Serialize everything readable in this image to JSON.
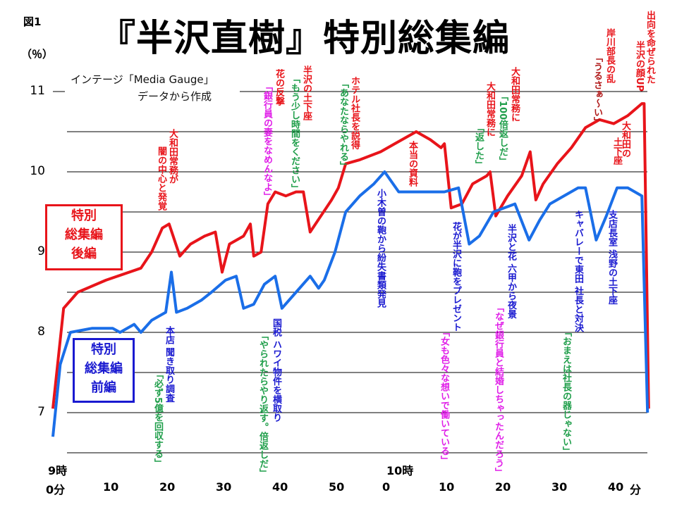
{
  "figure_label": "図1",
  "title": "『半沢直樹』特別総集編",
  "source_note": [
    "インテージ「Media Gauge」",
    "データから作成"
  ],
  "legend_boxes": {
    "late": [
      "特別",
      "総集編",
      "後編"
    ],
    "early": [
      "特別",
      "総集編",
      "前編"
    ]
  },
  "colors": {
    "late": "#e8141a",
    "early": "#1a6ee8",
    "grid": "#000000"
  },
  "chart_data": {
    "type": "line",
    "title": "『半沢直樹』特別総集編",
    "ylabel": "（％）",
    "xlabel": "分",
    "ylim": [
      6.5,
      11
    ],
    "xlim": [
      0,
      111
    ],
    "y_ticks": [
      "11",
      "10",
      "9",
      "8",
      "7"
    ],
    "y_tick_values": [
      11,
      10,
      9,
      8,
      7
    ],
    "hour_labels": [
      {
        "label": "9時",
        "minute": 0
      },
      {
        "label": "10時",
        "minute": 60
      }
    ],
    "x_ticks": [
      {
        "label": "0分",
        "minute": 0
      },
      {
        "label": "10",
        "minute": 10
      },
      {
        "label": "20",
        "minute": 20
      },
      {
        "label": "30",
        "minute": 30
      },
      {
        "label": "40",
        "minute": 40
      },
      {
        "label": "50",
        "minute": 50
      },
      {
        "label": "0",
        "minute": 60
      },
      {
        "label": "10",
        "minute": 70
      },
      {
        "label": "20",
        "minute": 80
      },
      {
        "label": "30",
        "minute": 90
      },
      {
        "label": "40",
        "minute": 100
      }
    ],
    "x_unit_label": "分",
    "grid": true,
    "series": [
      {
        "name": "特別総集編 後編",
        "color": "#e8141a",
        "x": [
          0,
          1.9,
          4.4,
          9.4,
          15.6,
          17.5,
          19.4,
          20.6,
          22.5,
          24.4,
          26.9,
          28.8,
          30,
          31.3,
          33.8,
          35,
          35.6,
          36.9,
          38.1,
          39.4,
          41.3,
          43.1,
          44.4,
          45.6,
          47.5,
          49.4,
          50.6,
          51.9,
          54.4,
          58.1,
          60.6,
          64.4,
          66.9,
          68.8,
          69.4,
          70.6,
          72.5,
          74.4,
          76.9,
          77.5,
          78.5,
          80.6,
          83.1,
          84.6,
          85.6,
          86.9,
          89.4,
          91.9,
          94.4,
          96.9,
          99.4,
          101.9,
          104.4,
          104.8,
          105.6
        ],
        "y": [
          7.05,
          8.3,
          8.5,
          8.65,
          8.8,
          9.0,
          9.3,
          9.35,
          8.95,
          9.1,
          9.2,
          9.25,
          8.75,
          9.1,
          9.2,
          9.35,
          8.95,
          9.0,
          9.6,
          9.75,
          9.7,
          9.75,
          9.75,
          9.25,
          9.45,
          9.65,
          9.8,
          10.1,
          10.15,
          10.25,
          10.35,
          10.5,
          10.4,
          10.3,
          10.35,
          9.55,
          9.6,
          9.85,
          9.95,
          10.0,
          9.45,
          9.7,
          9.95,
          10.25,
          9.65,
          9.85,
          10.1,
          10.3,
          10.55,
          10.65,
          10.6,
          10.7,
          10.85,
          10.85,
          7.05
        ]
      },
      {
        "name": "特別総集編 前編",
        "color": "#1a6ee8",
        "x": [
          0,
          1.3,
          3.1,
          6.9,
          10.6,
          11.9,
          14.4,
          15.6,
          17.5,
          20,
          21,
          21.9,
          23.8,
          26.3,
          28.1,
          30.6,
          32.5,
          33.8,
          35.6,
          37.5,
          39.4,
          40.6,
          43.1,
          45.6,
          47.1,
          48.1,
          50,
          51.9,
          54.4,
          56.9,
          58.8,
          61.3,
          65.6,
          69.4,
          71.9,
          73.8,
          75.6,
          78.1,
          80,
          81.9,
          84.4,
          86.3,
          88.1,
          93.1,
          94.4,
          96.3,
          98.1,
          100,
          101.9,
          104.4,
          105.4
        ],
        "y": [
          6.7,
          7.6,
          8.0,
          8.05,
          8.05,
          8.0,
          8.1,
          8.0,
          8.15,
          8.25,
          8.75,
          8.25,
          8.3,
          8.4,
          8.5,
          8.65,
          8.7,
          8.3,
          8.35,
          8.6,
          8.7,
          8.3,
          8.5,
          8.7,
          8.55,
          8.65,
          9.0,
          9.5,
          9.7,
          9.85,
          10.0,
          9.75,
          9.75,
          9.75,
          9.8,
          9.1,
          9.2,
          9.5,
          9.55,
          9.6,
          9.15,
          9.4,
          9.6,
          9.8,
          9.8,
          9.15,
          9.45,
          9.8,
          9.8,
          9.7,
          7.0
        ]
      }
    ],
    "annotations": [
      {
        "text": "大和田常務が",
        "color": "red"
      },
      {
        "text": "闇の中心と発覚",
        "color": "red"
      },
      {
        "text": "花の反撃",
        "color": "red"
      },
      {
        "text": "「銀行員の妻をなめんなよ」",
        "color": "mag"
      },
      {
        "text": "半沢の土下座",
        "color": "red"
      },
      {
        "text": "「もう少し時間をください」",
        "color": "green"
      },
      {
        "text": "ホテル社長を説得",
        "color": "red"
      },
      {
        "text": "「あなたならやれる」",
        "color": "green"
      },
      {
        "text": "本当の資料",
        "color": "red"
      },
      {
        "text": "大和田常務に",
        "color": "red"
      },
      {
        "text": "「返した」",
        "color": "green"
      },
      {
        "text": "大和田常務に",
        "color": "red"
      },
      {
        "text": "「100倍返しだ」",
        "color": "green"
      },
      {
        "text": "岸川部長の乱",
        "color": "red"
      },
      {
        "text": "「うるさぁ〜い」",
        "color": "dred"
      },
      {
        "text": "出向を命ぜられた",
        "color": "red"
      },
      {
        "text": "半沢の顔UP",
        "color": "red"
      },
      {
        "text": "大和田の",
        "color": "red"
      },
      {
        "text": "土下座",
        "color": "red"
      },
      {
        "text": "本店 聞き取り調査",
        "color": "blue"
      },
      {
        "text": "「必ず5億を回収する」",
        "color": "green"
      },
      {
        "text": "国税 ハワイ物件を横取り",
        "color": "blue"
      },
      {
        "text": "「やられたらやり返す。倍返しだ」",
        "color": "green"
      },
      {
        "text": "小木曽の鞄から紛失書類発見",
        "color": "blue"
      },
      {
        "text": "花が半沢に鞄をプレゼント",
        "color": "blue"
      },
      {
        "text": "「女も色々な想いで働いている」",
        "color": "mag"
      },
      {
        "text": "半沢と花 六甲から夜景",
        "color": "blue"
      },
      {
        "text": "「なぜ銀行員と結婚しちゃったんだろう」",
        "color": "mag"
      },
      {
        "text": "キャバレーで東田 社長と対決",
        "color": "blue"
      },
      {
        "text": "「おまえは社長の器じゃない」",
        "color": "green"
      },
      {
        "text": "支店長室 浅野の土下座",
        "color": "blue"
      }
    ]
  }
}
